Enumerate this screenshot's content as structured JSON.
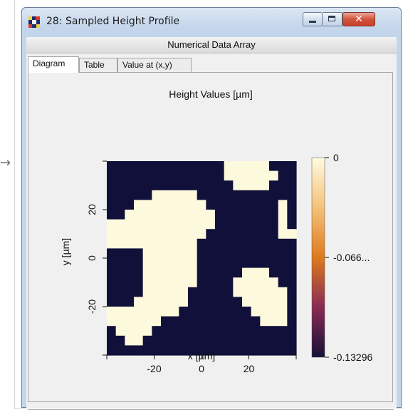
{
  "window": {
    "title": "28: Sampled Height Profile",
    "controls": {
      "minimize_icon": "minimize-icon",
      "maximize_icon": "maximize-icon",
      "close_icon": "close-icon",
      "close_glyph": "✕"
    }
  },
  "panel": {
    "header": "Numerical Data Array"
  },
  "tabs": [
    {
      "label": "Diagram",
      "active": true
    },
    {
      "label": "Table",
      "active": false
    },
    {
      "label": "Value at (x,y)",
      "active": false
    }
  ],
  "external_arrow": "→",
  "chart_data": {
    "type": "heatmap",
    "title": "Height Values  [µm]",
    "xlabel": "x [µm]",
    "ylabel": "y [µm]",
    "xlim": [
      -40,
      40
    ],
    "ylim": [
      -40,
      40
    ],
    "x_ticks": [
      -20,
      0,
      20
    ],
    "y_ticks": [
      20,
      0,
      -20
    ],
    "x_tick_labels": [
      "-20",
      "0",
      "20"
    ],
    "y_tick_labels": [
      "20",
      "0",
      "-20"
    ],
    "colorbar": {
      "min": -0.13296,
      "max": 0,
      "tick_labels": [
        "0",
        "-0.066...",
        "-0.13296"
      ],
      "tick_values": [
        0,
        -0.06648,
        -0.13296
      ],
      "colormap": [
        "#fffbe0",
        "#f4c27a",
        "#dd7a1c",
        "#8a2a55",
        "#151037"
      ]
    },
    "colors": {
      "high": "#fdf9dc",
      "low": "#11103a"
    },
    "grid": false,
    "grid_rows": [
      "000000000000000000000000000000",
      "000000000000000000000000000000",
      "00000000000000000000011111110000",
      "000000000000000000000111111100000000",
      "000000000000000000000111111100000000",
      "0000000000000000000000011111000000",
      "000000000000000000000000000000"
    ],
    "z_values": [
      [
        -0.13296,
        -0.13296,
        -0.13296,
        -0.13296,
        -0.13296,
        -0.13296,
        -0.13296,
        -0.13296,
        -0.13296,
        -0.13296,
        -0.13296,
        -0.13296,
        -0.13296,
        -0.13296,
        -0.13296,
        -0.13296,
        -0.13296,
        -0.13296,
        -0.13296,
        -0.13296
      ],
      [
        -0.13296,
        -0.13296,
        -0.13296,
        -0.13296,
        -0.13296,
        -0.13296,
        -0.13296,
        -0.13296,
        -0.13296,
        -0.13296,
        -0.13296,
        -0.13296,
        -0.13296,
        -0.13296,
        -0.13296,
        -0.13296,
        -0.13296,
        -0.13296,
        -0.13296,
        -0.13296
      ],
      [
        -0.13296,
        -0.13296,
        -0.13296,
        -0.13296,
        -0.13296,
        -0.13296,
        -0.13296,
        -0.13296,
        -0.13296,
        -0.13296,
        -0.13296,
        -0.13296,
        -0.13296,
        -0.13296,
        -0.13296,
        -0.13296,
        -0.13296,
        -0.13296,
        -0.13296,
        -0.13296
      ],
      [
        -0.13296,
        -0.13296,
        -0.13296,
        -0.13296,
        -0.13296,
        -0.13296,
        -0.13296,
        -0.13296,
        -0.13296,
        -0.13296,
        -0.13296,
        -0.13296,
        -0.13296,
        -0.13296,
        -0.13296,
        -0.13296,
        -0.13296,
        -0.13296,
        -0.13296,
        -0.13296
      ],
      [
        -0.13296,
        -0.13296,
        -0.13296,
        -0.13296,
        -0.13296,
        -0.13296,
        -0.13296,
        -0.13296,
        -0.13296,
        -0.13296,
        -0.13296,
        -0.13296,
        -0.13296,
        -0.13296,
        -0.13296,
        -0.13296,
        -0.13296,
        -0.13296,
        -0.13296,
        -0.13296
      ],
      [
        -0.13296,
        -0.13296,
        -0.13296,
        -0.13296,
        -0.13296,
        -0.13296,
        -0.13296,
        -0.13296,
        -0.13296,
        -0.13296,
        -0.13296,
        -0.13296,
        -0.13296,
        -0.13296,
        -0.13296,
        -0.13296,
        -0.13296,
        -0.13296,
        -0.13296,
        -0.13296
      ],
      [
        -0.13296,
        -0.13296,
        -0.13296,
        -0.13296,
        -0.13296,
        -0.13296,
        -0.13296,
        -0.13296,
        -0.13296,
        -0.13296,
        -0.13296,
        -0.13296,
        -0.13296,
        -0.13296,
        -0.13296,
        -0.13296,
        -0.13296,
        -0.13296,
        -0.13296,
        -0.13296
      ]
    ],
    "mask_rows": [
      "000000000000000000000000000",
      "000000000000000000000000000",
      "000000000000000000000000000"
    ],
    "heightmap": [
      "000000000000011111000",
      "000000000000011111100",
      "000000000000001111000",
      "000001111100000000000",
      "000111111110000000010",
      "001111111111000000010",
      "111111111111000000010",
      "111111111110000000011",
      "111111111100000000000",
      "000011111100000000000",
      "000011111100000000000",
      "000011111100000111000",
      "000011111100001111100",
      "000011111000001111110",
      "000111111000000111110",
      "111111110000000011110",
      "111111000000000001110",
      "011110000000000000000",
      "001100000000000000000",
      "000000000000000000000"
    ]
  }
}
